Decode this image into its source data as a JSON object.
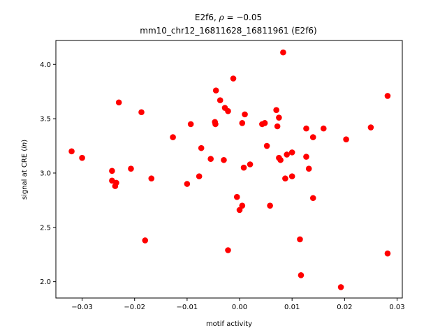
{
  "chart_data": {
    "type": "scatter",
    "title_line1_prefix": "E2f6, ",
    "title_rho_symbol": "ρ",
    "title_rho_value": " = −0.05",
    "title_line2": "mm10_chr12_16811628_16811961 (E2f6)",
    "xlabel": "motif activity",
    "ylabel_prefix": "signal at CRE (",
    "ylabel_italic": "ln",
    "ylabel_suffix": ")",
    "xlim": [
      -0.035,
      0.031
    ],
    "ylim": [
      1.85,
      4.22
    ],
    "xticks": [
      -0.03,
      -0.02,
      -0.01,
      0.0,
      0.01,
      0.02,
      0.03
    ],
    "xtick_labels": [
      "−0.03",
      "−0.02",
      "−0.01",
      "0.00",
      "0.01",
      "0.02",
      "0.03"
    ],
    "yticks": [
      2.0,
      2.5,
      3.0,
      3.5,
      4.0
    ],
    "ytick_labels": [
      "2.0",
      "2.5",
      "3.0",
      "3.5",
      "4.0"
    ],
    "marker_color": "#ff0000",
    "grid": false,
    "legend": "none",
    "points": [
      {
        "x": -0.032,
        "y": 3.2
      },
      {
        "x": -0.03,
        "y": 3.14
      },
      {
        "x": -0.0243,
        "y": 3.02
      },
      {
        "x": -0.0243,
        "y": 2.93
      },
      {
        "x": -0.0237,
        "y": 2.88
      },
      {
        "x": -0.0235,
        "y": 2.91
      },
      {
        "x": -0.023,
        "y": 3.65
      },
      {
        "x": -0.0207,
        "y": 3.04
      },
      {
        "x": -0.0187,
        "y": 3.56
      },
      {
        "x": -0.018,
        "y": 2.38
      },
      {
        "x": -0.0168,
        "y": 2.95
      },
      {
        "x": -0.0127,
        "y": 3.33
      },
      {
        "x": -0.01,
        "y": 2.9
      },
      {
        "x": -0.0093,
        "y": 3.45
      },
      {
        "x": -0.0077,
        "y": 2.97
      },
      {
        "x": -0.0073,
        "y": 3.23
      },
      {
        "x": -0.0055,
        "y": 3.13
      },
      {
        "x": -0.0047,
        "y": 3.47
      },
      {
        "x": -0.0046,
        "y": 3.45
      },
      {
        "x": -0.0045,
        "y": 3.76
      },
      {
        "x": -0.0037,
        "y": 3.67
      },
      {
        "x": -0.003,
        "y": 3.12
      },
      {
        "x": -0.0028,
        "y": 3.6
      },
      {
        "x": -0.0022,
        "y": 3.57
      },
      {
        "x": -0.0022,
        "y": 2.29
      },
      {
        "x": -0.0012,
        "y": 3.87
      },
      {
        "x": -0.0005,
        "y": 2.78
      },
      {
        "x": 0.0,
        "y": 2.66
      },
      {
        "x": 0.0005,
        "y": 3.46
      },
      {
        "x": 0.0005,
        "y": 2.7
      },
      {
        "x": 0.0008,
        "y": 3.05
      },
      {
        "x": 0.001,
        "y": 3.54
      },
      {
        "x": 0.002,
        "y": 3.08
      },
      {
        "x": 0.0043,
        "y": 3.45
      },
      {
        "x": 0.0048,
        "y": 3.46
      },
      {
        "x": 0.0052,
        "y": 3.25
      },
      {
        "x": 0.0058,
        "y": 2.7
      },
      {
        "x": 0.007,
        "y": 3.58
      },
      {
        "x": 0.0072,
        "y": 3.43
      },
      {
        "x": 0.0075,
        "y": 3.51
      },
      {
        "x": 0.0075,
        "y": 3.14
      },
      {
        "x": 0.0078,
        "y": 3.12
      },
      {
        "x": 0.0083,
        "y": 4.11
      },
      {
        "x": 0.0087,
        "y": 2.95
      },
      {
        "x": 0.009,
        "y": 3.17
      },
      {
        "x": 0.01,
        "y": 3.19
      },
      {
        "x": 0.01,
        "y": 2.97
      },
      {
        "x": 0.0115,
        "y": 2.39
      },
      {
        "x": 0.0117,
        "y": 2.06
      },
      {
        "x": 0.0127,
        "y": 3.41
      },
      {
        "x": 0.0127,
        "y": 3.15
      },
      {
        "x": 0.0132,
        "y": 3.04
      },
      {
        "x": 0.014,
        "y": 3.33
      },
      {
        "x": 0.014,
        "y": 2.77
      },
      {
        "x": 0.016,
        "y": 3.41
      },
      {
        "x": 0.0193,
        "y": 1.95
      },
      {
        "x": 0.0203,
        "y": 3.31
      },
      {
        "x": 0.025,
        "y": 3.42
      },
      {
        "x": 0.0282,
        "y": 3.71
      },
      {
        "x": 0.0282,
        "y": 2.26
      }
    ]
  }
}
